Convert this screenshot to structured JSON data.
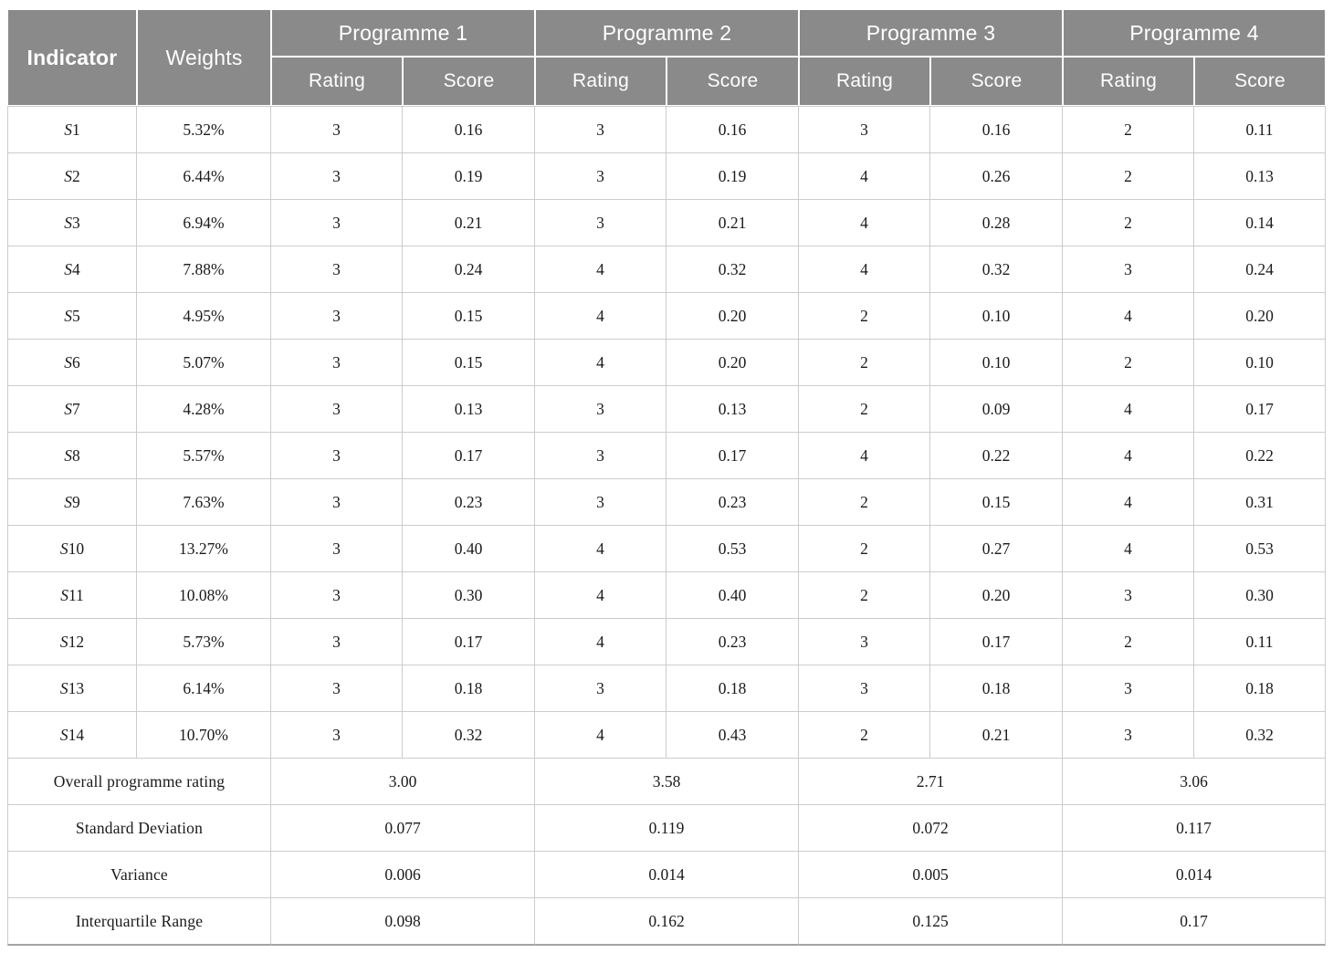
{
  "table": {
    "header": {
      "indicator": "Indicator",
      "weights": "Weights",
      "programmes": [
        "Programme 1",
        "Programme 2",
        "Programme 3",
        "Programme 4"
      ],
      "sub": {
        "rating": "Rating",
        "score": "Score"
      }
    },
    "rows": [
      {
        "indicator": "S1",
        "weight": "5.32%",
        "values": [
          "3",
          "0.16",
          "3",
          "0.16",
          "3",
          "0.16",
          "2",
          "0.11"
        ]
      },
      {
        "indicator": "S2",
        "weight": "6.44%",
        "values": [
          "3",
          "0.19",
          "3",
          "0.19",
          "4",
          "0.26",
          "2",
          "0.13"
        ]
      },
      {
        "indicator": "S3",
        "weight": "6.94%",
        "values": [
          "3",
          "0.21",
          "3",
          "0.21",
          "4",
          "0.28",
          "2",
          "0.14"
        ]
      },
      {
        "indicator": "S4",
        "weight": "7.88%",
        "values": [
          "3",
          "0.24",
          "4",
          "0.32",
          "4",
          "0.32",
          "3",
          "0.24"
        ]
      },
      {
        "indicator": "S5",
        "weight": "4.95%",
        "values": [
          "3",
          "0.15",
          "4",
          "0.20",
          "2",
          "0.10",
          "4",
          "0.20"
        ]
      },
      {
        "indicator": "S6",
        "weight": "5.07%",
        "values": [
          "3",
          "0.15",
          "4",
          "0.20",
          "2",
          "0.10",
          "2",
          "0.10"
        ]
      },
      {
        "indicator": "S7",
        "weight": "4.28%",
        "values": [
          "3",
          "0.13",
          "3",
          "0.13",
          "2",
          "0.09",
          "4",
          "0.17"
        ]
      },
      {
        "indicator": "S8",
        "weight": "5.57%",
        "values": [
          "3",
          "0.17",
          "3",
          "0.17",
          "4",
          "0.22",
          "4",
          "0.22"
        ]
      },
      {
        "indicator": "S9",
        "weight": "7.63%",
        "values": [
          "3",
          "0.23",
          "3",
          "0.23",
          "2",
          "0.15",
          "4",
          "0.31"
        ]
      },
      {
        "indicator": "S10",
        "weight": "13.27%",
        "values": [
          "3",
          "0.40",
          "4",
          "0.53",
          "2",
          "0.27",
          "4",
          "0.53"
        ]
      },
      {
        "indicator": "S11",
        "weight": "10.08%",
        "values": [
          "3",
          "0.30",
          "4",
          "0.40",
          "2",
          "0.20",
          "3",
          "0.30"
        ]
      },
      {
        "indicator": "S12",
        "weight": "5.73%",
        "values": [
          "3",
          "0.17",
          "4",
          "0.23",
          "3",
          "0.17",
          "2",
          "0.11"
        ]
      },
      {
        "indicator": "S13",
        "weight": "6.14%",
        "values": [
          "3",
          "0.18",
          "3",
          "0.18",
          "3",
          "0.18",
          "3",
          "0.18"
        ]
      },
      {
        "indicator": "S14",
        "weight": "10.70%",
        "values": [
          "3",
          "0.32",
          "4",
          "0.43",
          "2",
          "0.21",
          "3",
          "0.32"
        ]
      }
    ],
    "summary": [
      {
        "label": "Overall programme rating",
        "values": [
          "3.00",
          "3.58",
          "2.71",
          "3.06"
        ]
      },
      {
        "label": "Standard Deviation",
        "values": [
          "0.077",
          "0.119",
          "0.072",
          "0.117"
        ]
      },
      {
        "label": "Variance",
        "values": [
          "0.006",
          "0.014",
          "0.005",
          "0.014"
        ]
      },
      {
        "label": "Interquartile Range",
        "values": [
          "0.098",
          "0.162",
          "0.125",
          "0.17"
        ]
      }
    ]
  },
  "colors": {
    "header_bg": "#8a8a8a",
    "header_text": "#ffffff",
    "grid_line": "#cccccc",
    "body_text": "#1a1a1a",
    "bottom_border": "#a3a3a3"
  }
}
